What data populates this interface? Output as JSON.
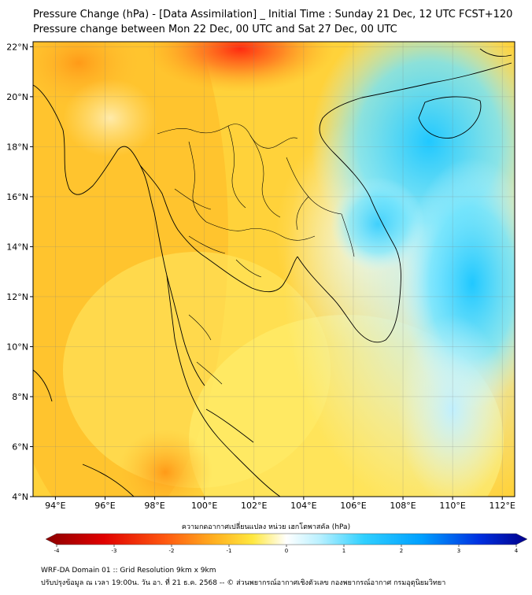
{
  "header": {
    "title_line1": "Pressure Change (hPa) - [Data Assimilation] _ Initial Time : Sunday 21 Dec, 12 UTC FCST+120",
    "title_line2": "Pressure change between Mon 22 Dec, 00 UTC and Sat 27 Dec, 00 UTC"
  },
  "map": {
    "lat_labels": [
      "22°N",
      "20°N",
      "18°N",
      "16°N",
      "14°N",
      "12°N",
      "10°N",
      "8°N",
      "6°N",
      "4°N"
    ],
    "lon_labels": [
      "94°E",
      "96°E",
      "98°E",
      "100°E",
      "102°E",
      "104°E",
      "106°E",
      "108°E",
      "110°E",
      "112°E"
    ],
    "lat_range": [
      4,
      22.2
    ],
    "lon_range": [
      93.1,
      112.5
    ],
    "gridlines": true,
    "field": "Pressure change (hPa)"
  },
  "colorbar": {
    "title": "ความกดอากาศเปลี่ยนแปลง หน่วย เฮกโตพาสคัล (hPa)",
    "ticks": [
      "-4",
      "-3",
      "-2",
      "-1",
      "0",
      "1",
      "2",
      "3",
      "4"
    ],
    "range": [
      -4,
      4
    ]
  },
  "footer": {
    "line1": "WRF-DA Domain 01 :: Grid Resolution 9km x 9km",
    "line2": "ปรับปรุงข้อมูล ณ เวลา 19:00น. วัน อา. ที่ 21 ธ.ค. 2568 -- © ส่วนพยากรณ์อากาศเชิงตัวเลข กองพยากรณ์อากาศ กรมอุตุนิยมวิทยา"
  },
  "colors": {
    "deep_red": "#8b0000",
    "red": "#ff2020",
    "orange": "#ffa020",
    "yellow": "#ffe030",
    "pale": "#fffff0",
    "cyan": "#30d8ff",
    "blue": "#0040ff",
    "navy": "#00008b"
  }
}
